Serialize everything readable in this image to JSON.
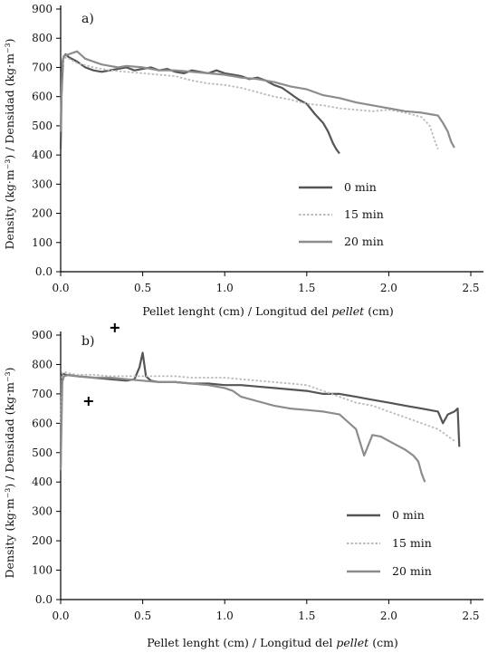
{
  "chart_data": [
    {
      "type": "line",
      "panel_label": "a)",
      "xlabel_plain": "Pellet lenght (cm) / Longitud del ",
      "xlabel_italic": "pellet",
      "xlabel_end": " (cm)",
      "ylabel": "Density (kg·m⁻³) / Densidad (kg·m⁻³)",
      "xlim": [
        0,
        2.5
      ],
      "ylim": [
        0,
        900
      ],
      "x_ticks": [
        "0.0",
        "0.5",
        "1.0",
        "1.5",
        "2.0",
        "2.5"
      ],
      "y_ticks": [
        "0.0",
        "100",
        "200",
        "300",
        "400",
        "500",
        "600",
        "700",
        "800",
        "900"
      ],
      "legend_position": "right",
      "series": [
        {
          "name": "0 min",
          "color": "#555555",
          "style": "solid",
          "x": [
            0.0,
            0.005,
            0.015,
            0.03,
            0.05,
            0.1,
            0.15,
            0.2,
            0.25,
            0.3,
            0.35,
            0.4,
            0.45,
            0.5,
            0.55,
            0.6,
            0.65,
            0.7,
            0.75,
            0.8,
            0.85,
            0.9,
            0.95,
            1.0,
            1.05,
            1.1,
            1.15,
            1.2,
            1.25,
            1.3,
            1.35,
            1.4,
            1.45,
            1.5,
            1.55,
            1.6,
            1.63,
            1.66,
            1.68,
            1.7
          ],
          "y": [
            420,
            600,
            730,
            745,
            735,
            720,
            700,
            690,
            685,
            690,
            695,
            700,
            690,
            695,
            700,
            690,
            695,
            685,
            680,
            690,
            685,
            680,
            690,
            680,
            675,
            670,
            660,
            665,
            655,
            640,
            630,
            610,
            590,
            575,
            540,
            510,
            480,
            440,
            420,
            405
          ]
        },
        {
          "name": "15 min",
          "color": "#bbbbbb",
          "style": "dotted",
          "x": [
            0.0,
            0.01,
            0.02,
            0.05,
            0.1,
            0.2,
            0.3,
            0.4,
            0.5,
            0.6,
            0.7,
            0.8,
            0.9,
            1.0,
            1.1,
            1.2,
            1.3,
            1.4,
            1.5,
            1.6,
            1.7,
            1.8,
            1.9,
            2.0,
            2.1,
            2.2,
            2.25,
            2.28,
            2.3
          ],
          "y": [
            500,
            700,
            735,
            730,
            715,
            700,
            690,
            685,
            680,
            675,
            670,
            655,
            645,
            640,
            630,
            615,
            600,
            590,
            575,
            570,
            560,
            555,
            550,
            555,
            545,
            530,
            500,
            450,
            420
          ]
        },
        {
          "name": "20 min",
          "color": "#8c8c8c",
          "style": "solid",
          "x": [
            0.0,
            0.01,
            0.02,
            0.05,
            0.1,
            0.15,
            0.2,
            0.25,
            0.3,
            0.35,
            0.4,
            0.5,
            0.6,
            0.7,
            0.8,
            0.9,
            1.0,
            1.1,
            1.2,
            1.3,
            1.4,
            1.5,
            1.6,
            1.7,
            1.8,
            1.9,
            2.0,
            2.1,
            2.2,
            2.25,
            2.3,
            2.33,
            2.36,
            2.38,
            2.4
          ],
          "y": [
            480,
            720,
            740,
            745,
            755,
            730,
            720,
            710,
            705,
            700,
            705,
            700,
            690,
            690,
            685,
            680,
            675,
            665,
            660,
            650,
            635,
            625,
            605,
            595,
            580,
            570,
            560,
            550,
            545,
            540,
            535,
            510,
            480,
            445,
            425
          ]
        }
      ]
    },
    {
      "type": "line",
      "panel_label": "b)",
      "xlabel_plain": "Pellet lenght (cm) / Longitud del ",
      "xlabel_italic": "pellet",
      "xlabel_end": " (cm)",
      "ylabel": "Density (kg·m⁻³) / Densidad (kg·m⁻³)",
      "xlim": [
        0,
        2.5
      ],
      "ylim": [
        0,
        900
      ],
      "x_ticks": [
        "0.0",
        "0.5",
        "1.0",
        "1.5",
        "2.0",
        "2.5"
      ],
      "y_ticks": [
        "0.0",
        "100",
        "200",
        "300",
        "400",
        "500",
        "600",
        "700",
        "800",
        "900"
      ],
      "legend_position": "right",
      "markers": [
        {
          "x": 0.33,
          "y": 925
        },
        {
          "x": 0.17,
          "y": 675
        }
      ],
      "series": [
        {
          "name": "0 min",
          "color": "#555555",
          "style": "solid",
          "x": [
            0.0,
            0.005,
            0.01,
            0.03,
            0.1,
            0.2,
            0.3,
            0.4,
            0.45,
            0.48,
            0.5,
            0.52,
            0.55,
            0.6,
            0.7,
            0.8,
            0.9,
            1.0,
            1.1,
            1.2,
            1.3,
            1.4,
            1.5,
            1.6,
            1.7,
            1.8,
            1.9,
            2.0,
            2.1,
            2.2,
            2.3,
            2.33,
            2.36,
            2.4,
            2.42,
            2.43
          ],
          "y": [
            450,
            760,
            770,
            765,
            760,
            755,
            750,
            745,
            750,
            790,
            840,
            760,
            745,
            740,
            740,
            735,
            735,
            730,
            730,
            725,
            720,
            715,
            710,
            700,
            700,
            690,
            680,
            670,
            660,
            650,
            640,
            600,
            630,
            640,
            650,
            520
          ]
        },
        {
          "name": "15 min",
          "color": "#bbbbbb",
          "style": "dotted",
          "x": [
            0.0,
            0.01,
            0.02,
            0.05,
            0.1,
            0.2,
            0.3,
            0.4,
            0.5,
            0.6,
            0.7,
            0.8,
            0.9,
            1.0,
            1.1,
            1.2,
            1.3,
            1.4,
            1.5,
            1.6,
            1.7,
            1.8,
            1.9,
            2.0,
            2.1,
            2.2,
            2.3,
            2.35,
            2.4
          ],
          "y": [
            600,
            770,
            775,
            770,
            765,
            765,
            760,
            760,
            760,
            760,
            760,
            755,
            755,
            755,
            750,
            745,
            740,
            735,
            730,
            710,
            690,
            670,
            660,
            640,
            620,
            600,
            580,
            560,
            540
          ]
        },
        {
          "name": "20 min",
          "color": "#8c8c8c",
          "style": "solid",
          "x": [
            0.0,
            0.01,
            0.02,
            0.05,
            0.1,
            0.2,
            0.3,
            0.4,
            0.5,
            0.6,
            0.7,
            0.8,
            0.9,
            1.0,
            1.05,
            1.1,
            1.2,
            1.3,
            1.4,
            1.5,
            1.6,
            1.7,
            1.8,
            1.85,
            1.9,
            1.95,
            2.0,
            2.05,
            2.1,
            2.15,
            2.18,
            2.2,
            2.22
          ],
          "y": [
            440,
            740,
            760,
            765,
            760,
            755,
            755,
            750,
            745,
            740,
            740,
            735,
            730,
            720,
            710,
            690,
            675,
            660,
            650,
            645,
            640,
            630,
            580,
            490,
            560,
            555,
            540,
            525,
            510,
            490,
            470,
            430,
            400
          ]
        }
      ]
    }
  ]
}
